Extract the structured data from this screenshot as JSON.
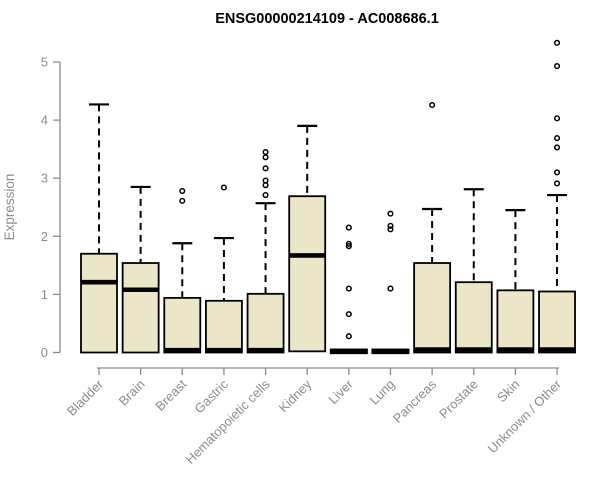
{
  "colors": {
    "background": "#ffffff",
    "box_fill": "#ece6c9",
    "box_stroke": "#000000",
    "median_color": "#000000",
    "whisker_color": "#000000",
    "axis_color": "#8c8c8c",
    "tick_label_color": "#8c8c8c",
    "title_color": "#000000"
  },
  "chart_data": {
    "type": "boxplot",
    "title": "ENSG00000214109 - AC008686.1",
    "xlabel": "",
    "ylabel": "Expression",
    "ylim": [
      0,
      5.4
    ],
    "yticks": [
      0,
      1,
      2,
      3,
      4,
      5
    ],
    "grid": "off",
    "legend": "none",
    "categories": [
      "Bladder",
      "Brain",
      "Breast",
      "Gastric",
      "Hematopoietic cells",
      "Kidney",
      "Liver",
      "Lung",
      "Pancreas",
      "Prostate",
      "Skin",
      "Unknown / Other"
    ],
    "boxes": [
      {
        "category": "Bladder",
        "q1": 0,
        "median": 1.21,
        "q3": 1.7,
        "whisker_low": 0,
        "whisker_high": 4.27,
        "outliers": []
      },
      {
        "category": "Brain",
        "q1": 0,
        "median": 1.08,
        "q3": 1.54,
        "whisker_low": 0,
        "whisker_high": 2.85,
        "outliers": []
      },
      {
        "category": "Breast",
        "q1": 0,
        "median": 0.04,
        "q3": 0.94,
        "whisker_low": 0,
        "whisker_high": 1.88,
        "outliers": [
          2.78,
          2.61
        ]
      },
      {
        "category": "Gastric",
        "q1": 0,
        "median": 0.04,
        "q3": 0.89,
        "whisker_low": 0,
        "whisker_high": 1.97,
        "outliers": [
          2.84
        ]
      },
      {
        "category": "Hematopoietic cells",
        "q1": 0,
        "median": 0.04,
        "q3": 1.01,
        "whisker_low": 0,
        "whisker_high": 2.57,
        "outliers": [
          3.45,
          3.36,
          3.17,
          2.96,
          2.88,
          2.71
        ]
      },
      {
        "category": "Kidney",
        "q1": 0.02,
        "median": 1.67,
        "q3": 2.69,
        "whisker_low": 0.02,
        "whisker_high": 3.9,
        "outliers": []
      },
      {
        "category": "Liver",
        "q1": 0.02,
        "median": 0.02,
        "q3": 0.02,
        "whisker_low": 0.02,
        "whisker_high": 0.02,
        "outliers": [
          2.15,
          1.87,
          1.83,
          1.1,
          0.66,
          0.28
        ]
      },
      {
        "category": "Lung",
        "q1": 0.02,
        "median": 0.02,
        "q3": 0.02,
        "whisker_low": 0.02,
        "whisker_high": 0.02,
        "outliers": [
          2.39,
          2.18,
          2.12,
          1.1
        ]
      },
      {
        "category": "Pancreas",
        "q1": 0,
        "median": 0.05,
        "q3": 1.54,
        "whisker_low": 0,
        "whisker_high": 2.47,
        "outliers": [
          4.26
        ]
      },
      {
        "category": "Prostate",
        "q1": 0,
        "median": 0.05,
        "q3": 1.21,
        "whisker_low": 0,
        "whisker_high": 2.81,
        "outliers": []
      },
      {
        "category": "Skin",
        "q1": 0,
        "median": 0.05,
        "q3": 1.07,
        "whisker_low": 0,
        "whisker_high": 2.45,
        "outliers": []
      },
      {
        "category": "Unknown / Other",
        "q1": 0,
        "median": 0.05,
        "q3": 1.05,
        "whisker_low": 0,
        "whisker_high": 2.71,
        "outliers": [
          5.33,
          4.93,
          4.03,
          3.69,
          3.53,
          3.1,
          2.91
        ]
      }
    ]
  }
}
